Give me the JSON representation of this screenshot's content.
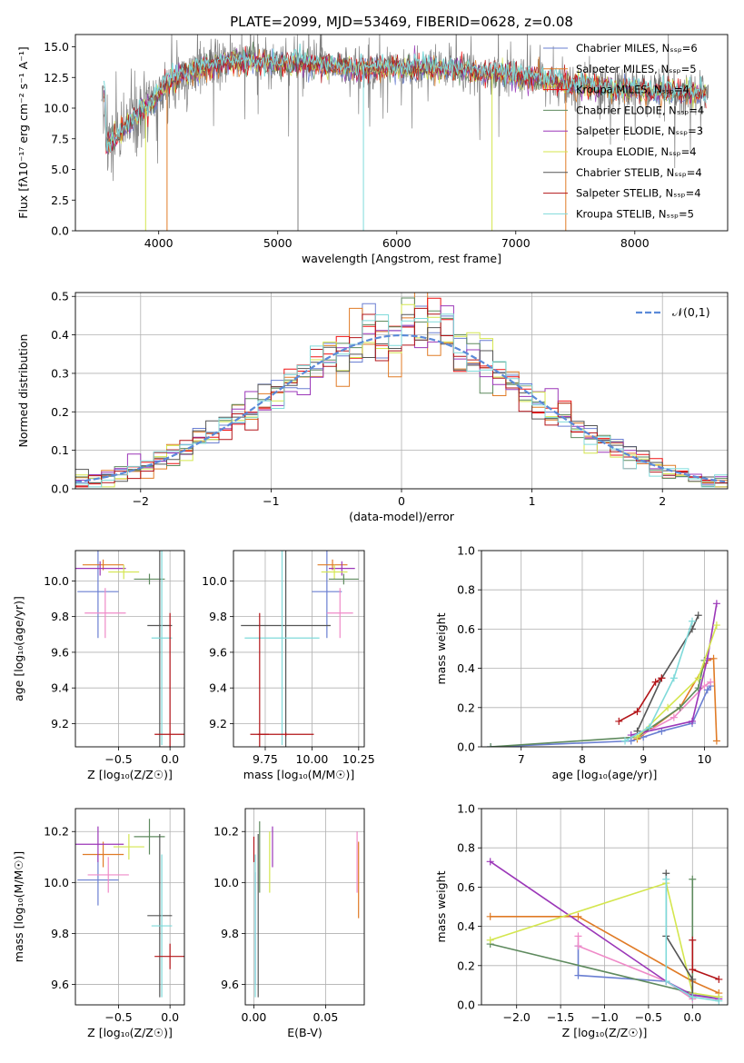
{
  "figure_title": "PLATE=2099, MJD=53469, FIBERID=0628, z=0.08",
  "colors": [
    "#6a7fd2",
    "#e07b26",
    "#ef1010",
    "#5e8a5e",
    "#9b37b8",
    "#d4e64e",
    "#555555",
    "#b31418",
    "#7fdada"
  ],
  "chart_data": [
    {
      "id": "spectrum",
      "type": "line",
      "title": "PLATE=2099, MJD=53469, FIBERID=0628, z=0.08",
      "xlabel": "wavelength [Angstrom, rest frame]",
      "ylabel": "Flux [fλ10⁻¹⁷ erg cm⁻² s⁻¹ A⁻¹]",
      "xlim": [
        3300,
        8780
      ],
      "ylim": [
        0,
        16
      ],
      "xticks": [
        4000,
        5000,
        6000,
        7000,
        8000
      ],
      "yticks": [
        0.0,
        2.5,
        5.0,
        7.5,
        10.0,
        12.5,
        15.0
      ],
      "grid": false,
      "legend_position": "top-right",
      "legend": [
        {
          "name": "Chabrier MILES, Nₛₛₚ=6",
          "color": "#6a7fd2"
        },
        {
          "name": "Salpeter MILES, Nₛₛₚ=5",
          "color": "#e07b26"
        },
        {
          "name": "Kroupa MILES, Nₛₛₚ=4",
          "color": "#ef1010"
        },
        {
          "name": "Chabrier ELODIE, Nₛₛₚ=4",
          "color": "#5e8a5e"
        },
        {
          "name": "Salpeter ELODIE, Nₛₛₚ=3",
          "color": "#9b37b8"
        },
        {
          "name": "Kroupa ELODIE, Nₛₛₚ=4",
          "color": "#d4e64e"
        },
        {
          "name": "Chabrier STELIB, Nₛₛₚ=4",
          "color": "#555555"
        },
        {
          "name": "Salpeter STELIB, Nₛₛₚ=4",
          "color": "#b31418"
        },
        {
          "name": "Kroupa STELIB, Nₛₛₚ=5",
          "color": "#7fdada"
        }
      ],
      "continuum": [
        [
          3550,
          7.0
        ],
        [
          3650,
          7.6
        ],
        [
          3750,
          8.8
        ],
        [
          3850,
          9.8
        ],
        [
          3950,
          10.5
        ],
        [
          4050,
          11.8
        ],
        [
          4150,
          12.6
        ],
        [
          4300,
          13.0
        ],
        [
          4500,
          13.6
        ],
        [
          4700,
          13.8
        ],
        [
          4900,
          13.7
        ],
        [
          5100,
          13.6
        ],
        [
          5300,
          13.6
        ],
        [
          5500,
          13.4
        ],
        [
          5800,
          13.2
        ],
        [
          6000,
          13.3
        ],
        [
          6300,
          13.3
        ],
        [
          6600,
          13.1
        ],
        [
          6900,
          12.7
        ],
        [
          7200,
          12.4
        ],
        [
          7500,
          11.9
        ],
        [
          7800,
          11.6
        ],
        [
          8100,
          11.4
        ],
        [
          8400,
          11.3
        ],
        [
          8600,
          11.2
        ]
      ],
      "spikes_down": [
        [
          3890,
          0.0
        ],
        [
          4070,
          0.0
        ],
        [
          5170,
          0.0
        ],
        [
          5720,
          0.0
        ],
        [
          6800,
          0.0
        ],
        [
          7420,
          0.0
        ]
      ]
    },
    {
      "id": "residuals",
      "type": "histogram",
      "xlabel": "(data-model)/error",
      "ylabel": "Normed distribution",
      "xlim": [
        -2.5,
        2.5
      ],
      "ylim": [
        0,
        0.51
      ],
      "xticks": [
        -2,
        -1,
        0,
        1,
        2
      ],
      "yticks": [
        0.0,
        0.1,
        0.2,
        0.3,
        0.4,
        0.5
      ],
      "grid": true,
      "legend_position": "top-right",
      "legend": [
        {
          "name": "𝒩(0,1)",
          "color": "#5b8ad8",
          "style": "dashed"
        }
      ],
      "bin_width": 0.1
    },
    {
      "id": "age_vs_Z",
      "type": "errorbar",
      "xlabel": "Z [log₁₀(Z/Z☉)]",
      "ylabel": "age  [log₁₀(age/yr)]",
      "xlim": [
        -0.92,
        0.14
      ],
      "ylim": [
        9.07,
        10.17
      ],
      "xticks": [
        -0.5,
        0.0
      ],
      "xtick_labels": [
        "−0.5",
        "0.0"
      ],
      "yticks": [
        9.2,
        9.4,
        9.6,
        9.8,
        10.0
      ],
      "grid": true,
      "points": [
        {
          "x": -0.7,
          "xerr": 0.2,
          "y": 9.94,
          "yerr": 0.26,
          "color": "#6a7fd2"
        },
        {
          "x": -0.65,
          "xerr": 0.2,
          "y": 10.09,
          "yerr": 0.03,
          "color": "#e07b26"
        },
        {
          "x": -0.63,
          "xerr": 0.2,
          "y": 9.82,
          "yerr": 0.14,
          "color": "#ef8ac8"
        },
        {
          "x": -0.68,
          "xerr": 0.25,
          "y": 10.07,
          "yerr": 0.04,
          "color": "#9b37b8"
        },
        {
          "x": -0.45,
          "xerr": 0.15,
          "y": 10.05,
          "yerr": 0.04,
          "color": "#d4e64e"
        },
        {
          "x": -0.2,
          "xerr": 0.15,
          "y": 10.01,
          "yerr": 0.03,
          "color": "#5e8a5e"
        },
        {
          "x": -0.1,
          "xerr": 0.12,
          "y": 9.75,
          "yerr": 0.68,
          "color": "#555555"
        },
        {
          "x": -0.08,
          "xerr": 0.1,
          "y": 9.68,
          "yerr": 0.6,
          "color": "#7fdada"
        },
        {
          "x": 0.0,
          "xerr": 0.15,
          "y": 9.14,
          "yerr": 0.68,
          "color": "#b31418"
        }
      ]
    },
    {
      "id": "age_vs_mass",
      "type": "errorbar",
      "xlabel": "mass [log₁₀(M/M☉)]",
      "xlim": [
        9.58,
        10.28
      ],
      "ylim": [
        9.07,
        10.17
      ],
      "xticks": [
        9.75,
        10.0,
        10.25
      ],
      "xtick_labels": [
        "9.75",
        "10.00",
        "10.25"
      ],
      "yticks": [
        9.2,
        9.4,
        9.6,
        9.8,
        10.0
      ],
      "grid": true,
      "points": [
        {
          "x": 10.08,
          "xerr": 0.08,
          "y": 9.94,
          "yerr": 0.26,
          "color": "#6a7fd2"
        },
        {
          "x": 10.11,
          "xerr": 0.08,
          "y": 10.09,
          "yerr": 0.03,
          "color": "#e07b26"
        },
        {
          "x": 10.15,
          "xerr": 0.07,
          "y": 9.82,
          "yerr": 0.14,
          "color": "#ef8ac8"
        },
        {
          "x": 10.16,
          "xerr": 0.07,
          "y": 10.07,
          "yerr": 0.04,
          "color": "#9b37b8"
        },
        {
          "x": 10.12,
          "xerr": 0.07,
          "y": 10.05,
          "yerr": 0.04,
          "color": "#d4e64e"
        },
        {
          "x": 10.17,
          "xerr": 0.08,
          "y": 10.01,
          "yerr": 0.03,
          "color": "#5e8a5e"
        },
        {
          "x": 9.86,
          "xerr": 0.24,
          "y": 9.75,
          "yerr": 0.68,
          "color": "#555555"
        },
        {
          "x": 9.84,
          "xerr": 0.2,
          "y": 9.68,
          "yerr": 0.6,
          "color": "#7fdada"
        },
        {
          "x": 9.72,
          "xerr": 0.05,
          "y": 9.14,
          "yerr": 0.68,
          "color": "#b31418"
        },
        {
          "x": 9.86,
          "xerr": 0.15,
          "y": 9.14,
          "yerr": 0.01,
          "color": "#b31418"
        }
      ]
    },
    {
      "id": "weight_vs_age",
      "type": "line",
      "xlabel": "age  [log₁₀(age/yr)]",
      "ylabel": "mass weight",
      "xlim": [
        6.35,
        10.38
      ],
      "ylim": [
        0,
        1
      ],
      "xticks": [
        7,
        8,
        9,
        10
      ],
      "yticks": [
        0.0,
        0.2,
        0.4,
        0.6,
        0.8,
        1.0
      ],
      "grid": true,
      "series": [
        {
          "color": "#6a7fd2",
          "points": [
            [
              6.5,
              0.0
            ],
            [
              8.8,
              0.03
            ],
            [
              9.0,
              0.05
            ],
            [
              9.3,
              0.08
            ],
            [
              9.8,
              0.12
            ],
            [
              10.05,
              0.29
            ],
            [
              10.1,
              0.31
            ]
          ]
        },
        {
          "color": "#e07b26",
          "points": [
            [
              8.9,
              0.04
            ],
            [
              9.6,
              0.2
            ],
            [
              10.05,
              0.44
            ],
            [
              10.15,
              0.45
            ],
            [
              10.2,
              0.03
            ]
          ]
        },
        {
          "color": "#ef8ac8",
          "points": [
            [
              8.9,
              0.05
            ],
            [
              9.5,
              0.15
            ],
            [
              10.0,
              0.31
            ],
            [
              10.1,
              0.33
            ]
          ]
        },
        {
          "color": "#5e8a5e",
          "points": [
            [
              6.5,
              0.0
            ],
            [
              8.9,
              0.05
            ],
            [
              9.6,
              0.2
            ],
            [
              9.9,
              0.3
            ],
            [
              10.0,
              0.44
            ]
          ]
        },
        {
          "color": "#9b37b8",
          "points": [
            [
              8.8,
              0.06
            ],
            [
              9.8,
              0.13
            ],
            [
              10.05,
              0.45
            ],
            [
              10.2,
              0.73
            ]
          ]
        },
        {
          "color": "#d4e64e",
          "points": [
            [
              8.9,
              0.05
            ],
            [
              9.4,
              0.2
            ],
            [
              9.9,
              0.35
            ],
            [
              10.2,
              0.62
            ]
          ]
        },
        {
          "color": "#555555",
          "points": [
            [
              8.9,
              0.08
            ],
            [
              9.3,
              0.35
            ],
            [
              9.8,
              0.6
            ],
            [
              9.9,
              0.67
            ]
          ]
        },
        {
          "color": "#b31418",
          "points": [
            [
              8.6,
              0.13
            ],
            [
              8.9,
              0.18
            ],
            [
              9.2,
              0.33
            ],
            [
              9.3,
              0.35
            ]
          ]
        },
        {
          "color": "#7fdada",
          "points": [
            [
              8.7,
              0.03
            ],
            [
              9.1,
              0.1
            ],
            [
              9.5,
              0.35
            ],
            [
              9.8,
              0.64
            ]
          ]
        }
      ]
    },
    {
      "id": "mass_vs_Z",
      "type": "errorbar",
      "xlabel": "Z [log₁₀(Z/Z☉)]",
      "ylabel": "mass [log₁₀(M/M☉)]",
      "xlim": [
        -0.92,
        0.14
      ],
      "ylim": [
        9.52,
        10.29
      ],
      "xticks": [
        -0.5,
        0.0
      ],
      "xtick_labels": [
        "−0.5",
        "0.0"
      ],
      "yticks": [
        9.6,
        9.8,
        10.0,
        10.2
      ],
      "grid": true,
      "points": [
        {
          "x": -0.7,
          "xerr": 0.2,
          "y": 10.01,
          "yerr": 0.1,
          "color": "#6a7fd2"
        },
        {
          "x": -0.65,
          "xerr": 0.2,
          "y": 10.11,
          "yerr": 0.05,
          "color": "#e07b26"
        },
        {
          "x": -0.6,
          "xerr": 0.2,
          "y": 10.03,
          "yerr": 0.07,
          "color": "#ef8ac8"
        },
        {
          "x": -0.7,
          "xerr": 0.25,
          "y": 10.15,
          "yerr": 0.07,
          "color": "#9b37b8"
        },
        {
          "x": -0.4,
          "xerr": 0.15,
          "y": 10.14,
          "yerr": 0.05,
          "color": "#d4e64e"
        },
        {
          "x": -0.2,
          "xerr": 0.15,
          "y": 10.18,
          "yerr": 0.07,
          "color": "#5e8a5e"
        },
        {
          "x": -0.1,
          "xerr": 0.12,
          "y": 9.87,
          "yerr": 0.32,
          "color": "#555555"
        },
        {
          "x": -0.08,
          "xerr": 0.1,
          "y": 9.83,
          "yerr": 0.28,
          "color": "#7fdada"
        },
        {
          "x": 0.0,
          "xerr": 0.15,
          "y": 9.71,
          "yerr": 0.05,
          "color": "#b31418"
        }
      ]
    },
    {
      "id": "mass_vs_EBV",
      "type": "errorbar",
      "xlabel": "E(B-V)",
      "xlim": [
        -0.006,
        0.077
      ],
      "ylim": [
        9.52,
        10.29
      ],
      "xticks": [
        0.0,
        0.05
      ],
      "xtick_labels": [
        "0.00",
        "0.05"
      ],
      "yticks": [
        9.6,
        9.8,
        10.0,
        10.2
      ],
      "grid": true,
      "points": [
        {
          "x": 0.001,
          "y": 9.82,
          "yerr": 0.22,
          "color": "#6a7fd2"
        },
        {
          "x": 0.073,
          "y": 10.01,
          "yerr": 0.15,
          "color": "#e07b26"
        },
        {
          "x": 0.072,
          "y": 10.08,
          "yerr": 0.12,
          "color": "#ef8ac8"
        },
        {
          "x": 0.013,
          "y": 10.14,
          "yerr": 0.08,
          "color": "#9b37b8"
        },
        {
          "x": 0.011,
          "y": 10.08,
          "yerr": 0.12,
          "color": "#d4e64e"
        },
        {
          "x": 0.004,
          "y": 10.1,
          "yerr": 0.14,
          "color": "#5e8a5e"
        },
        {
          "x": 0.003,
          "y": 9.87,
          "yerr": 0.32,
          "color": "#555555"
        },
        {
          "x": 0.001,
          "y": 9.83,
          "yerr": 0.28,
          "color": "#7fdada"
        },
        {
          "x": 0.0,
          "y": 10.13,
          "yerr": 0.05,
          "color": "#b31418"
        }
      ]
    },
    {
      "id": "weight_vs_Z",
      "type": "line",
      "xlabel": "Z [log₁₀(Z/Z☉)]",
      "ylabel": "mass weight",
      "xlim": [
        -2.4,
        0.4
      ],
      "ylim": [
        0,
        1
      ],
      "xticks": [
        -2.0,
        -1.5,
        -1.0,
        -0.5,
        0.0
      ],
      "xtick_labels": [
        "−2.0",
        "−1.5",
        "−1.0",
        "−0.5",
        "0.0"
      ],
      "yticks": [
        0.0,
        0.2,
        0.4,
        0.6,
        0.8,
        1.0
      ],
      "grid": true,
      "series": [
        {
          "color": "#6a7fd2",
          "points": [
            [
              -1.3,
              0.3
            ],
            [
              -1.3,
              0.15
            ],
            [
              -0.3,
              0.12
            ],
            [
              0.0,
              0.05
            ],
            [
              0.3,
              0.04
            ]
          ]
        },
        {
          "color": "#e07b26",
          "points": [
            [
              -2.3,
              0.45
            ],
            [
              -1.3,
              0.45
            ],
            [
              0.0,
              0.12
            ],
            [
              0.3,
              0.06
            ]
          ]
        },
        {
          "color": "#ef8ac8",
          "points": [
            [
              -1.3,
              0.35
            ],
            [
              -1.3,
              0.3
            ],
            [
              -0.3,
              0.12
            ],
            [
              0.0,
              0.03
            ]
          ]
        },
        {
          "color": "#5e8a5e",
          "points": [
            [
              -2.3,
              0.31
            ],
            [
              0.0,
              0.06
            ],
            [
              0.0,
              0.64
            ],
            [
              0.0,
              0.05
            ]
          ]
        },
        {
          "color": "#9b37b8",
          "points": [
            [
              -2.3,
              0.73
            ],
            [
              -0.3,
              0.12
            ],
            [
              0.0,
              0.05
            ],
            [
              0.3,
              0.03
            ]
          ]
        },
        {
          "color": "#d4e64e",
          "points": [
            [
              -2.3,
              0.33
            ],
            [
              -0.3,
              0.62
            ],
            [
              0.0,
              0.06
            ],
            [
              0.3,
              0.04
            ]
          ]
        },
        {
          "color": "#555555",
          "points": [
            [
              -0.3,
              0.67
            ],
            [
              -0.3,
              0.35
            ],
            [
              0.0,
              0.13
            ],
            [
              0.0,
              0.04
            ]
          ]
        },
        {
          "color": "#b31418",
          "points": [
            [
              0.0,
              0.33
            ],
            [
              0.0,
              0.18
            ],
            [
              0.3,
              0.13
            ]
          ]
        },
        {
          "color": "#7fdada",
          "points": [
            [
              -0.3,
              0.64
            ],
            [
              -0.3,
              0.12
            ],
            [
              0.0,
              0.04
            ],
            [
              0.3,
              0.02
            ]
          ]
        }
      ]
    }
  ]
}
